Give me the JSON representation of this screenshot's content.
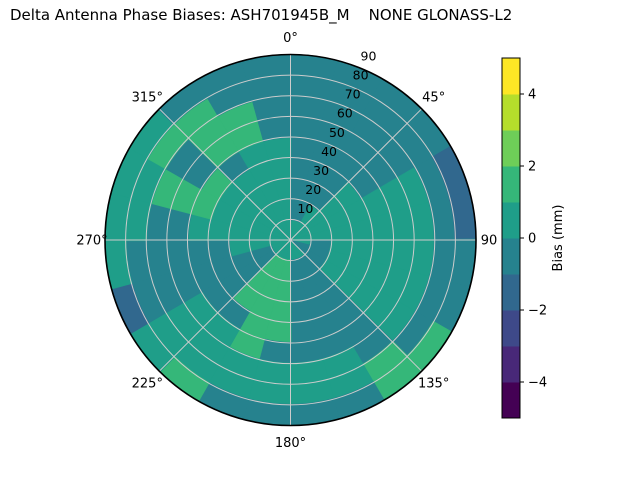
{
  "title": "Delta Antenna Phase Biases: ASH701945B_M    NONE GLONASS-L2",
  "chart_data": {
    "type": "heatmap",
    "plot_style": "filled polar contour (azimuth vs zenith angle)",
    "projection": "polar",
    "angle_direction": "clockwise",
    "zero_location": "N",
    "title": "Delta Antenna Phase Biases: ASH701945B_M    NONE GLONASS-L2",
    "azimuth_tick_deg": [
      0,
      45,
      90,
      135,
      180,
      225,
      270,
      315
    ],
    "azimuth_tick_labels": [
      "0°",
      "45°",
      "90",
      "135°",
      "180°",
      "225°",
      "270°",
      "315°"
    ],
    "radial_tick_labels": [
      "10",
      "20",
      "30",
      "40",
      "50",
      "60",
      "70",
      "80",
      "90"
    ],
    "radial_label_angle_deg": 22.5,
    "radial_range": [
      0,
      90
    ],
    "grid": true,
    "grid_color": "#cccccc",
    "azimuth_bin_deg": 15,
    "zenith_bin_deg": 10,
    "values_mm": [
      [
        0.5,
        -0.5,
        -0.5,
        -0.5,
        -0.5,
        -0.5,
        -0.5,
        -0.5,
        -0.5
      ],
      [
        0.5,
        -0.5,
        -0.5,
        -0.5,
        -0.5,
        -0.5,
        -0.5,
        -0.5,
        -0.5
      ],
      [
        0.5,
        0.5,
        -0.5,
        -0.5,
        -0.5,
        -0.5,
        -0.5,
        -0.5,
        -0.5
      ],
      [
        0.5,
        0.5,
        0.5,
        0.5,
        -0.5,
        -0.5,
        -0.5,
        -0.5,
        -0.5
      ],
      [
        0.5,
        0.5,
        0.5,
        0.5,
        0.5,
        0.5,
        0.5,
        -0.5,
        -1.5
      ],
      [
        0.5,
        0.5,
        0.5,
        0.5,
        0.5,
        0.5,
        0.5,
        -0.5,
        -1.5
      ],
      [
        0.5,
        -0.5,
        0.5,
        0.5,
        0.5,
        0.5,
        0.5,
        -0.5,
        -0.5
      ],
      [
        -0.5,
        -0.5,
        0.5,
        0.5,
        0.5,
        0.5,
        0.5,
        -0.5,
        -0.5
      ],
      [
        -0.5,
        -0.5,
        0.5,
        0.5,
        0.5,
        0.5,
        0.5,
        -0.5,
        1.5
      ],
      [
        0.5,
        -0.5,
        -0.5,
        -0.5,
        -0.5,
        -0.5,
        -0.5,
        1.5,
        1.5
      ],
      [
        0.5,
        -0.5,
        -0.5,
        -0.5,
        -0.5,
        -0.5,
        0.5,
        0.5,
        -0.5
      ],
      [
        0.5,
        -0.5,
        -0.5,
        -0.5,
        -0.5,
        -0.5,
        0.5,
        0.5,
        -0.5
      ],
      [
        0.5,
        1.5,
        1.5,
        1.5,
        1.5,
        -0.5,
        0.5,
        0.5,
        -0.5
      ],
      [
        0.5,
        1.5,
        1.5,
        1.5,
        1.5,
        1.5,
        0.5,
        0.5,
        -0.5
      ],
      [
        0.5,
        1.5,
        1.5,
        1.5,
        -0.5,
        0.5,
        0.5,
        0.5,
        1.5
      ],
      [
        0.5,
        -0.5,
        -0.5,
        -0.5,
        -0.5,
        0.5,
        0.5,
        0.5,
        0.5
      ],
      [
        0.5,
        -0.5,
        -0.5,
        -0.5,
        -0.5,
        -0.5,
        -0.5,
        -0.5,
        -1.5
      ],
      [
        0.5,
        0.5,
        0.5,
        -0.5,
        -0.5,
        -0.5,
        -0.5,
        -0.5,
        0.5
      ],
      [
        0.5,
        0.5,
        0.5,
        0.5,
        0.5,
        -0.5,
        -0.5,
        0.5,
        0.5
      ],
      [
        0.5,
        0.5,
        0.5,
        0.5,
        1.5,
        1.5,
        1.5,
        0.5,
        0.5
      ],
      [
        0.5,
        0.5,
        0.5,
        0.5,
        1.5,
        -0.5,
        -0.5,
        1.5,
        0.5
      ],
      [
        0.5,
        0.5,
        0.5,
        0.5,
        -0.5,
        1.5,
        1.5,
        1.5,
        -0.5
      ],
      [
        0.5,
        0.5,
        0.5,
        0.5,
        0.5,
        1.5,
        1.5,
        -0.5,
        -0.5
      ],
      [
        0.5,
        0.5,
        0.5,
        0.5,
        0.5,
        -0.5,
        -0.5,
        -0.5,
        -0.5
      ]
    ],
    "colorbar": {
      "label": "Bias (mm)",
      "range": [
        -5,
        5
      ],
      "ticks": [
        -4,
        -2,
        0,
        2,
        4
      ],
      "tick_labels": [
        "−4",
        "−2",
        "0",
        "2",
        "4"
      ],
      "colors": [
        "#440154",
        "#482878",
        "#3e4989",
        "#31688e",
        "#26828e",
        "#1f9e89",
        "#35b779",
        "#6ece58",
        "#b5de2b",
        "#fde725"
      ]
    }
  }
}
